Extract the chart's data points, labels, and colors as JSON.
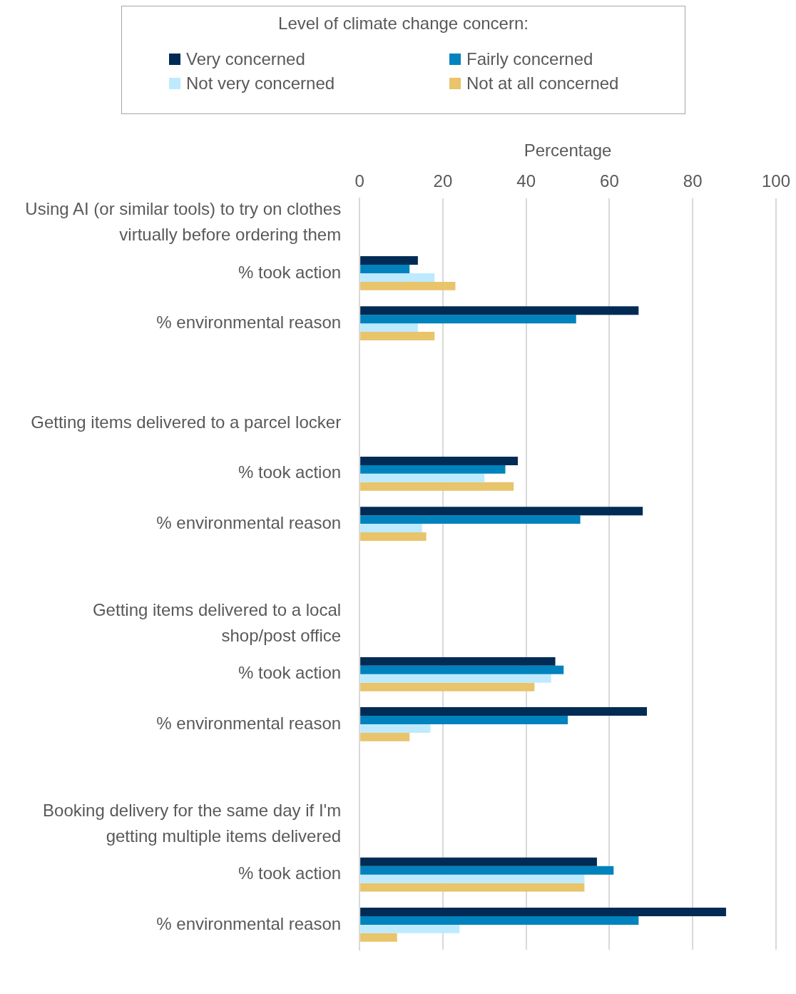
{
  "chart_data": {
    "type": "bar",
    "orientation": "horizontal",
    "xlabel": "Percentage",
    "legend_title": "Level of climate change concern:",
    "legend": "top",
    "categories": [
      "Using AI (or similar tools) to try on clothes\nvirtually before ordering them",
      "% took action",
      "% environmental reason",
      null,
      "Getting items delivered to a parcel locker",
      "% took action",
      "% environmental reason",
      null,
      "Getting items delivered to a local\nshop/post office",
      "% took action",
      "% environmental reason",
      null,
      "Booking delivery for the same day if I'm\ngetting multiple items delivered",
      "% took action",
      "% environmental reason"
    ],
    "series": [
      {
        "name": "Very concerned",
        "color": "#002b54",
        "values": [
          null,
          14,
          67,
          null,
          null,
          38,
          68,
          null,
          null,
          47,
          69,
          null,
          null,
          57,
          88
        ]
      },
      {
        "name": "Fairly concerned",
        "color": "#0082bd",
        "values": [
          null,
          12,
          52,
          null,
          null,
          35,
          53,
          null,
          null,
          49,
          50,
          null,
          null,
          61,
          67
        ]
      },
      {
        "name": "Not very concerned",
        "color": "#bdeaff",
        "values": [
          null,
          18,
          14,
          null,
          null,
          30,
          15,
          null,
          null,
          46,
          17,
          null,
          null,
          54,
          24
        ]
      },
      {
        "name": "Not at all concerned",
        "color": "#e8c46a",
        "values": [
          null,
          23,
          18,
          null,
          null,
          37,
          16,
          null,
          null,
          42,
          12,
          null,
          null,
          54,
          9
        ]
      }
    ],
    "xlim": [
      0,
      100
    ],
    "xticks": [
      0,
      20,
      40,
      60,
      80,
      100
    ],
    "grid": "x"
  }
}
